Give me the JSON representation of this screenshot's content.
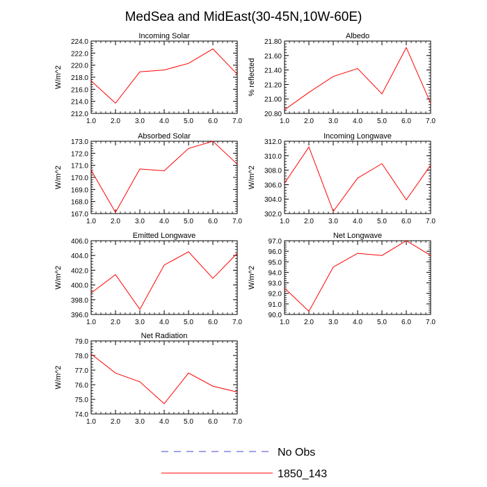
{
  "figure": {
    "title": "MedSea and MidEast(30-45N,10W-60E)"
  },
  "colors": {
    "model_line": "#ff0000",
    "obs_line": "#4444cc",
    "axis": "#000000"
  },
  "legend": {
    "entries": [
      {
        "label": "No Obs",
        "style": "dashed",
        "color": "#4444cc"
      },
      {
        "label": "1850_143",
        "style": "solid",
        "color": "#ff0000"
      }
    ]
  },
  "chart_data": [
    {
      "type": "line",
      "title": "Incoming Solar",
      "ylabel": "W/m^2",
      "x": [
        1,
        2,
        3,
        4,
        5,
        6,
        7
      ],
      "xlim": [
        1,
        7
      ],
      "ylim": [
        212,
        224
      ],
      "x_ticks": [
        "1.0",
        "2.0",
        "3.0",
        "4.0",
        "5.0",
        "6.0",
        "7.0"
      ],
      "y_ticks": [
        "212.0",
        "214.0",
        "216.0",
        "218.0",
        "220.0",
        "222.0",
        "224.0"
      ],
      "y_minor_step": 0.4,
      "series": [
        {
          "name": "1850_143",
          "values": [
            217.4,
            213.7,
            218.9,
            219.2,
            220.3,
            222.7,
            218.5
          ]
        }
      ]
    },
    {
      "type": "line",
      "title": "Albedo",
      "ylabel": "% reflected",
      "x": [
        1,
        2,
        3,
        4,
        5,
        6,
        7
      ],
      "xlim": [
        1,
        7
      ],
      "ylim": [
        20.8,
        21.8
      ],
      "x_ticks": [
        "1.0",
        "2.0",
        "3.0",
        "4.0",
        "5.0",
        "6.0",
        "7.0"
      ],
      "y_ticks": [
        "20.80",
        "21.00",
        "21.20",
        "21.40",
        "21.60",
        "21.80"
      ],
      "y_minor_step": 0.04,
      "series": [
        {
          "name": "1850_143",
          "values": [
            20.85,
            21.09,
            21.31,
            21.42,
            21.07,
            21.71,
            20.94
          ]
        }
      ]
    },
    {
      "type": "line",
      "title": "Absorbed Solar",
      "ylabel": "W/m^2",
      "x": [
        1,
        2,
        3,
        4,
        5,
        6,
        7
      ],
      "xlim": [
        1,
        7
      ],
      "ylim": [
        167,
        173
      ],
      "x_ticks": [
        "1.0",
        "2.0",
        "3.0",
        "4.0",
        "5.0",
        "6.0",
        "7.0"
      ],
      "y_ticks": [
        "167.0",
        "168.0",
        "169.0",
        "170.0",
        "171.0",
        "172.0",
        "173.0"
      ],
      "y_minor_step": 0.2,
      "series": [
        {
          "name": "1850_143",
          "values": [
            170.6,
            167.1,
            170.7,
            170.55,
            172.4,
            173.0,
            171.1
          ]
        }
      ]
    },
    {
      "type": "line",
      "title": "Incoming Longwave",
      "ylabel": "W/m^2",
      "x": [
        1,
        2,
        3,
        4,
        5,
        6,
        7
      ],
      "xlim": [
        1,
        7
      ],
      "ylim": [
        302,
        312
      ],
      "x_ticks": [
        "1.0",
        "2.0",
        "3.0",
        "4.0",
        "5.0",
        "6.0",
        "7.0"
      ],
      "y_ticks": [
        "302.0",
        "304.0",
        "306.0",
        "308.0",
        "310.0",
        "312.0"
      ],
      "y_minor_step": 0.4,
      "series": [
        {
          "name": "1850_143",
          "values": [
            306.2,
            311.2,
            302.3,
            306.9,
            308.9,
            303.9,
            308.7
          ]
        }
      ]
    },
    {
      "type": "line",
      "title": "Emitted Longwave",
      "ylabel": "W/m^2",
      "x": [
        1,
        2,
        3,
        4,
        5,
        6,
        7
      ],
      "xlim": [
        1,
        7
      ],
      "ylim": [
        396,
        406
      ],
      "x_ticks": [
        "1.0",
        "2.0",
        "3.0",
        "4.0",
        "5.0",
        "6.0",
        "7.0"
      ],
      "y_ticks": [
        "396.0",
        "398.0",
        "400.0",
        "402.0",
        "404.0",
        "406.0"
      ],
      "y_minor_step": 0.4,
      "series": [
        {
          "name": "1850_143",
          "values": [
            398.9,
            401.4,
            396.7,
            402.7,
            404.5,
            400.9,
            404.3
          ]
        }
      ]
    },
    {
      "type": "line",
      "title": "Net Longwave",
      "ylabel": "W/m^2",
      "x": [
        1,
        2,
        3,
        4,
        5,
        6,
        7
      ],
      "xlim": [
        1,
        7
      ],
      "ylim": [
        90,
        97
      ],
      "x_ticks": [
        "1.0",
        "2.0",
        "3.0",
        "4.0",
        "5.0",
        "6.0",
        "7.0"
      ],
      "y_ticks": [
        "90.0",
        "91.0",
        "92.0",
        "93.0",
        "94.0",
        "95.0",
        "96.0",
        "97.0"
      ],
      "y_minor_step": 0.2,
      "series": [
        {
          "name": "1850_143",
          "values": [
            92.5,
            90.3,
            94.5,
            95.8,
            95.6,
            97.0,
            95.6
          ]
        }
      ]
    },
    {
      "type": "line",
      "title": "Net Radiation",
      "ylabel": "W/m^2",
      "x": [
        1,
        2,
        3,
        4,
        5,
        6,
        7
      ],
      "xlim": [
        1,
        7
      ],
      "ylim": [
        74,
        79
      ],
      "x_ticks": [
        "1.0",
        "2.0",
        "3.0",
        "4.0",
        "5.0",
        "6.0",
        "7.0"
      ],
      "y_ticks": [
        "74.0",
        "75.0",
        "76.0",
        "77.0",
        "78.0",
        "79.0"
      ],
      "y_minor_step": 0.2,
      "series": [
        {
          "name": "1850_143",
          "values": [
            78.1,
            76.8,
            76.2,
            74.7,
            76.8,
            75.9,
            75.5
          ]
        }
      ]
    }
  ]
}
